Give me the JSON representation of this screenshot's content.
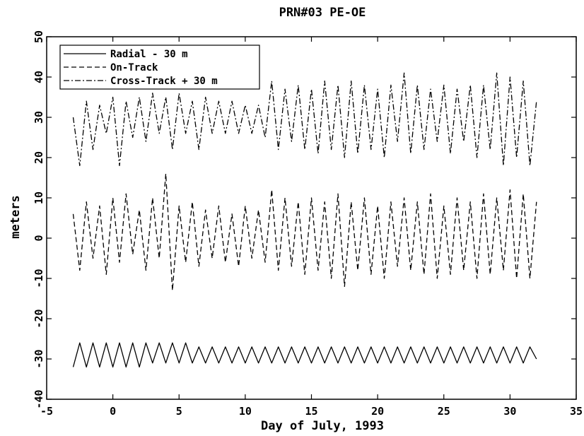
{
  "chart_data": {
    "type": "line",
    "title": "PRN#03 PE-OE",
    "xlabel": "Day of July, 1993",
    "ylabel": "meters",
    "xlim": [
      -5,
      35
    ],
    "ylim": [
      -40,
      50
    ],
    "x_ticks": [
      -5,
      0,
      5,
      10,
      15,
      20,
      25,
      30,
      35
    ],
    "y_ticks": [
      -40,
      -30,
      -20,
      -10,
      0,
      10,
      20,
      30,
      40,
      50
    ],
    "x_tick_labels": [
      "-5",
      "0",
      "5",
      "10",
      "15",
      "20",
      "25",
      "30",
      "35"
    ],
    "y_tick_labels": [
      "-40",
      "-30",
      "-20",
      "-10",
      "0",
      "10",
      "20",
      "30",
      "40",
      "50"
    ],
    "grid": false,
    "legend_position": "top-left",
    "series": [
      {
        "name": "Radial - 30 m",
        "style": "solid",
        "x": [
          -3.0,
          -2.5,
          -2.0,
          -1.5,
          -1.0,
          -0.5,
          0.0,
          0.5,
          1.0,
          1.5,
          2.0,
          2.5,
          3.0,
          3.5,
          4.0,
          4.5,
          5.0,
          5.5,
          6.0,
          6.5,
          7.0,
          7.5,
          8.0,
          8.5,
          9.0,
          9.5,
          10.0,
          10.5,
          11.0,
          11.5,
          12.0,
          12.5,
          13.0,
          13.5,
          14.0,
          14.5,
          15.0,
          15.5,
          16.0,
          16.5,
          17.0,
          17.5,
          18.0,
          18.5,
          19.0,
          19.5,
          20.0,
          20.5,
          21.0,
          21.5,
          22.0,
          22.5,
          23.0,
          23.5,
          24.0,
          24.5,
          25.0,
          25.5,
          26.0,
          26.5,
          27.0,
          27.5,
          28.0,
          28.5,
          29.0,
          29.5,
          30.0,
          30.5,
          31.0,
          31.5,
          32.0
        ],
        "y": [
          -32,
          -26,
          -32,
          -26,
          -32,
          -26,
          -32,
          -26,
          -32,
          -26,
          -32,
          -26,
          -31,
          -26,
          -31,
          -26,
          -31,
          -26,
          -31,
          -27,
          -31,
          -27,
          -31,
          -27,
          -31,
          -27,
          -31,
          -27,
          -31,
          -27,
          -31,
          -27,
          -31,
          -27,
          -31,
          -27,
          -31,
          -27,
          -31,
          -27,
          -31,
          -27,
          -31,
          -27,
          -31,
          -27,
          -31,
          -27,
          -31,
          -27,
          -31,
          -27,
          -31,
          -27,
          -31,
          -27,
          -31,
          -27,
          -31,
          -27,
          -31,
          -27,
          -31,
          -27,
          -31,
          -27,
          -31,
          -27,
          -31,
          -27,
          -30
        ]
      },
      {
        "name": "On-Track",
        "style": "dashed",
        "x": [
          -3.0,
          -2.5,
          -2.0,
          -1.5,
          -1.0,
          -0.5,
          0.0,
          0.5,
          1.0,
          1.5,
          2.0,
          2.5,
          3.0,
          3.5,
          4.0,
          4.5,
          5.0,
          5.5,
          6.0,
          6.5,
          7.0,
          7.5,
          8.0,
          8.5,
          9.0,
          9.5,
          10.0,
          10.5,
          11.0,
          11.5,
          12.0,
          12.5,
          13.0,
          13.5,
          14.0,
          14.5,
          15.0,
          15.5,
          16.0,
          16.5,
          17.0,
          17.5,
          18.0,
          18.5,
          19.0,
          19.5,
          20.0,
          20.5,
          21.0,
          21.5,
          22.0,
          22.5,
          23.0,
          23.5,
          24.0,
          24.5,
          25.0,
          25.5,
          26.0,
          26.5,
          27.0,
          27.5,
          28.0,
          28.5,
          29.0,
          29.5,
          30.0,
          30.5,
          31.0,
          31.5,
          32.0
        ],
        "y": [
          6,
          -8,
          9,
          -5,
          8,
          -9,
          10,
          -6,
          11,
          -4,
          7,
          -8,
          10,
          -5,
          16,
          -13,
          8,
          -6,
          9,
          -7,
          7,
          -5,
          8,
          -6,
          6,
          -7,
          8,
          -5,
          7,
          -6,
          12,
          -8,
          10,
          -7,
          9,
          -9,
          10,
          -8,
          9,
          -10,
          11,
          -12,
          9,
          -8,
          10,
          -9,
          8,
          -10,
          9,
          -7,
          10,
          -8,
          9,
          -9,
          11,
          -10,
          8,
          -9,
          10,
          -8,
          9,
          -10,
          11,
          -9,
          10,
          -8,
          12,
          -10,
          11,
          -10,
          9
        ]
      },
      {
        "name": "Cross-Track + 30 m",
        "style": "dashdot",
        "x": [
          -3.0,
          -2.5,
          -2.0,
          -1.5,
          -1.0,
          -0.5,
          0.0,
          0.5,
          1.0,
          1.5,
          2.0,
          2.5,
          3.0,
          3.5,
          4.0,
          4.5,
          5.0,
          5.5,
          6.0,
          6.5,
          7.0,
          7.5,
          8.0,
          8.5,
          9.0,
          9.5,
          10.0,
          10.5,
          11.0,
          11.5,
          12.0,
          12.5,
          13.0,
          13.5,
          14.0,
          14.5,
          15.0,
          15.5,
          16.0,
          16.5,
          17.0,
          17.5,
          18.0,
          18.5,
          19.0,
          19.5,
          20.0,
          20.5,
          21.0,
          21.5,
          22.0,
          22.5,
          23.0,
          23.5,
          24.0,
          24.5,
          25.0,
          25.5,
          26.0,
          26.5,
          27.0,
          27.5,
          28.0,
          28.5,
          29.0,
          29.5,
          30.0,
          30.5,
          31.0,
          31.5,
          32.0
        ],
        "y": [
          30,
          18,
          34,
          22,
          33,
          26,
          35,
          18,
          34,
          25,
          35,
          24,
          36,
          26,
          35,
          22,
          36,
          26,
          34,
          22,
          35,
          26,
          34,
          26,
          34,
          26,
          33,
          26,
          33,
          25,
          39,
          22,
          37,
          24,
          38,
          22,
          37,
          21,
          39,
          22,
          38,
          20,
          39,
          21,
          38,
          22,
          37,
          20,
          38,
          24,
          41,
          21,
          38,
          22,
          37,
          24,
          38,
          21,
          37,
          24,
          38,
          20,
          38,
          22,
          41,
          18,
          40,
          20,
          39,
          18,
          34
        ]
      }
    ]
  }
}
